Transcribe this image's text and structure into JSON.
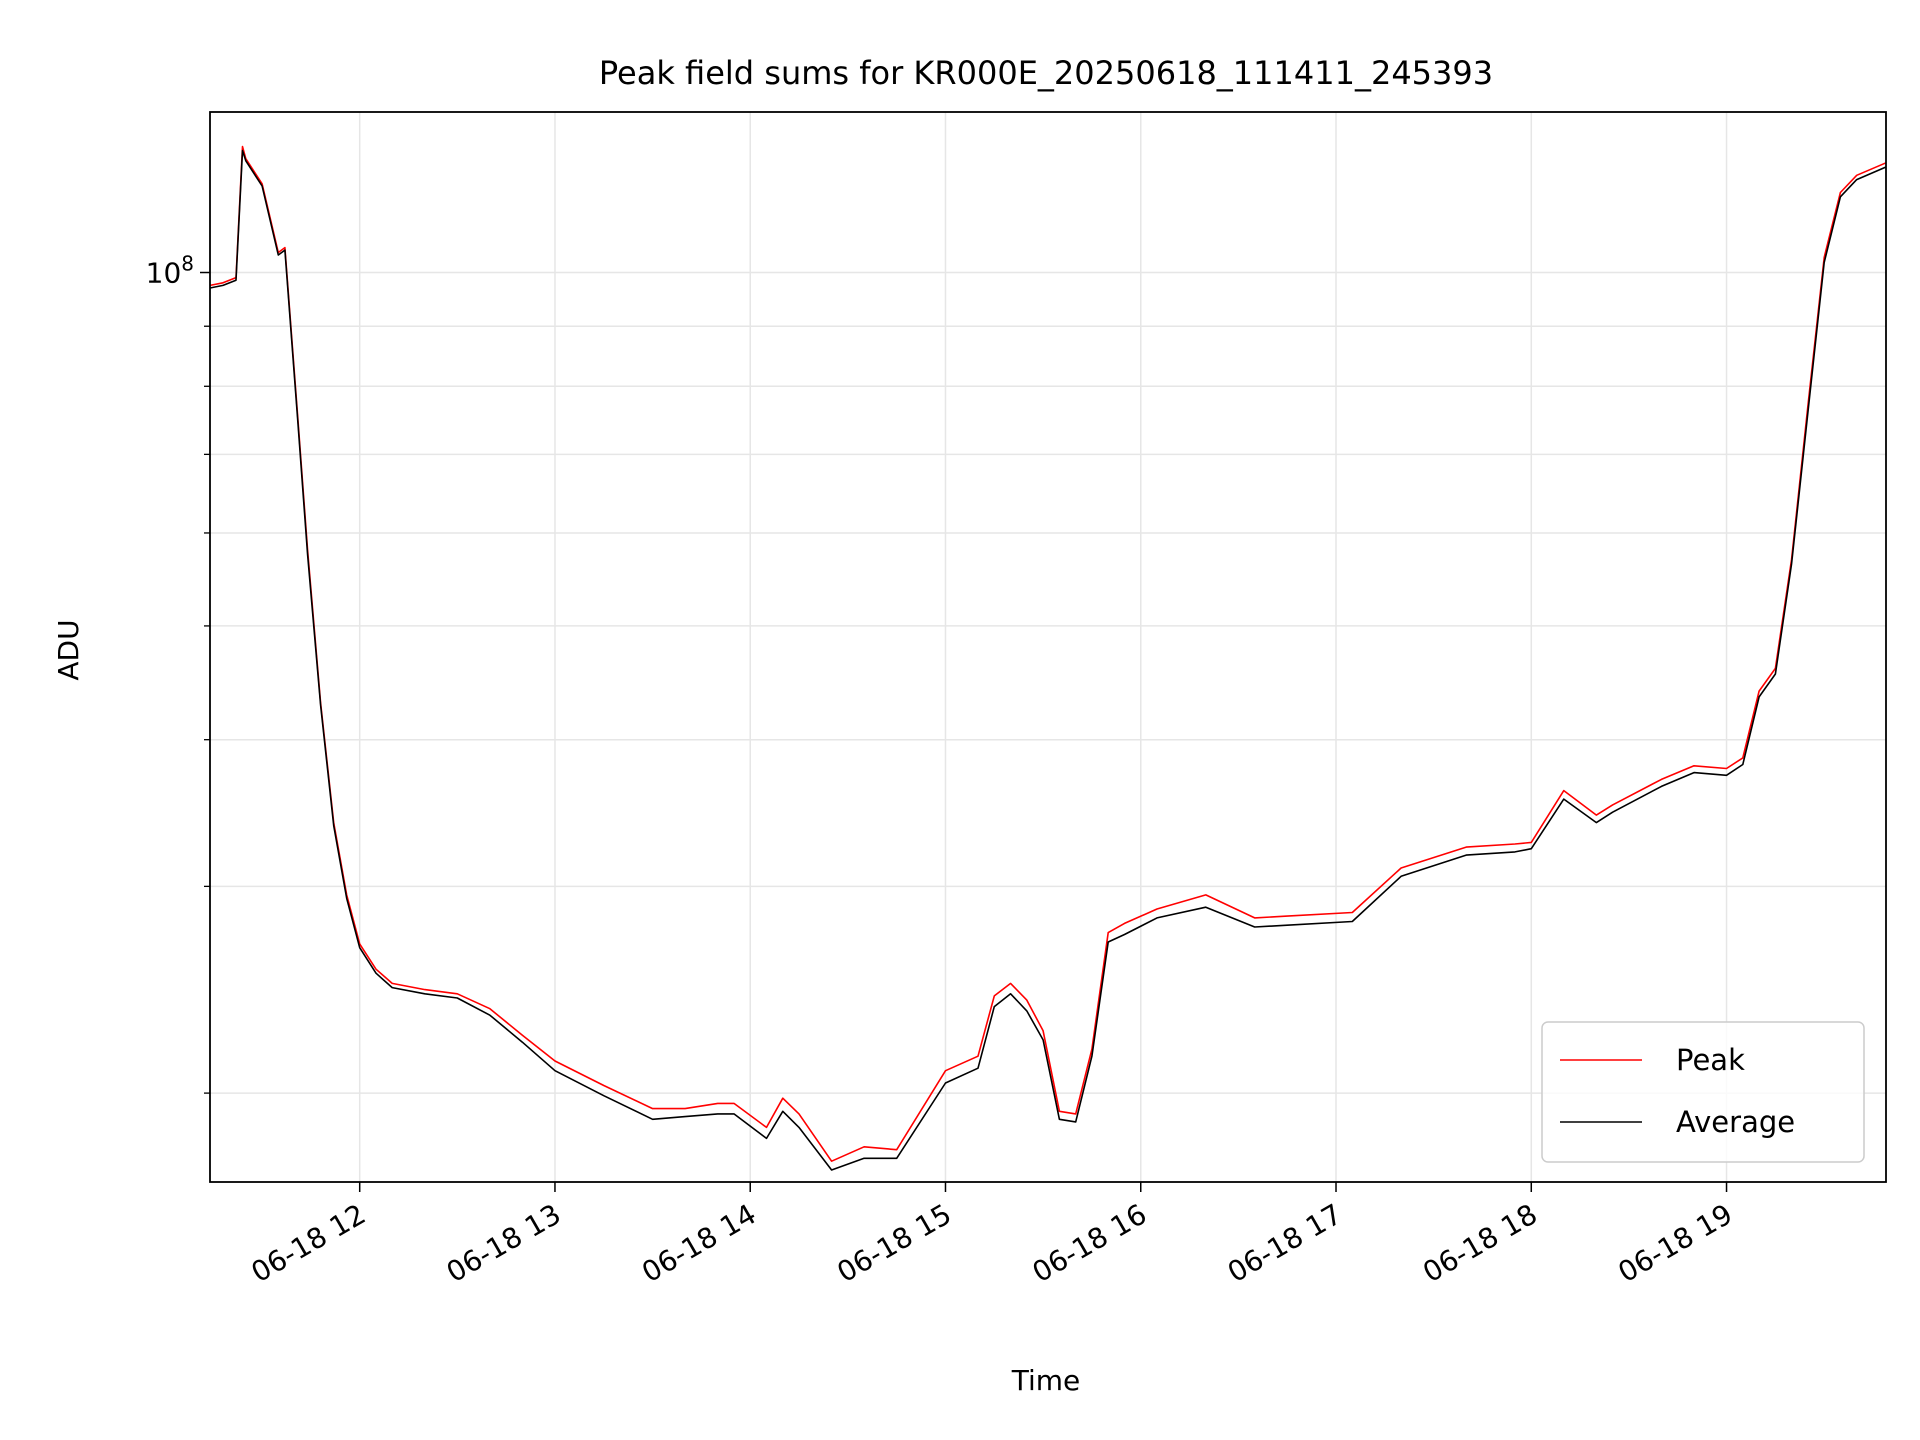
{
  "chart_data": {
    "type": "line",
    "title": "Peak field sums for KR000E_20250618_111411_245393",
    "xlabel": "Time",
    "ylabel": "ADU",
    "y_scale": "log",
    "ylim": [
      16800000,
      137000000
    ],
    "xlim": [
      "2025-06-18 11:14",
      "2025-06-18 19:49"
    ],
    "x_ticks": [
      {
        "label": "06-18 12",
        "value": "2025-06-18 12:00"
      },
      {
        "label": "06-18 13",
        "value": "2025-06-18 13:00"
      },
      {
        "label": "06-18 14",
        "value": "2025-06-18 14:00"
      },
      {
        "label": "06-18 15",
        "value": "2025-06-18 15:00"
      },
      {
        "label": "06-18 16",
        "value": "2025-06-18 16:00"
      },
      {
        "label": "06-18 17",
        "value": "2025-06-18 17:00"
      },
      {
        "label": "06-18 18",
        "value": "2025-06-18 18:00"
      },
      {
        "label": "06-18 19",
        "value": "2025-06-18 19:00"
      }
    ],
    "y_ticks": [
      {
        "label": "10",
        "exponent": "8",
        "value": 100000000
      }
    ],
    "grid": true,
    "legend": "lower-right",
    "series": [
      {
        "name": "Peak",
        "color": "#ff0000",
        "x": [
          "2025-06-18 11:14",
          "2025-06-18 11:18",
          "2025-06-18 11:22",
          "2025-06-18 11:24",
          "2025-06-18 11:25",
          "2025-06-18 11:30",
          "2025-06-18 11:35",
          "2025-06-18 11:37",
          "2025-06-18 11:41",
          "2025-06-18 11:44",
          "2025-06-18 11:48",
          "2025-06-18 11:52",
          "2025-06-18 11:56",
          "2025-06-18 12:00",
          "2025-06-18 12:05",
          "2025-06-18 12:10",
          "2025-06-18 12:20",
          "2025-06-18 12:30",
          "2025-06-18 12:40",
          "2025-06-18 12:50",
          "2025-06-18 13:00",
          "2025-06-18 13:15",
          "2025-06-18 13:30",
          "2025-06-18 13:40",
          "2025-06-18 13:50",
          "2025-06-18 13:55",
          "2025-06-18 14:05",
          "2025-06-18 14:10",
          "2025-06-18 14:15",
          "2025-06-18 14:25",
          "2025-06-18 14:35",
          "2025-06-18 14:45",
          "2025-06-18 15:00",
          "2025-06-18 15:10",
          "2025-06-18 15:15",
          "2025-06-18 15:20",
          "2025-06-18 15:25",
          "2025-06-18 15:30",
          "2025-06-18 15:35",
          "2025-06-18 15:40",
          "2025-06-18 15:45",
          "2025-06-18 15:50",
          "2025-06-18 15:55",
          "2025-06-18 16:05",
          "2025-06-18 16:20",
          "2025-06-18 16:35",
          "2025-06-18 16:45",
          "2025-06-18 17:05",
          "2025-06-18 17:20",
          "2025-06-18 17:40",
          "2025-06-18 17:55",
          "2025-06-18 18:00",
          "2025-06-18 18:10",
          "2025-06-18 18:20",
          "2025-06-18 18:25",
          "2025-06-18 18:40",
          "2025-06-18 18:50",
          "2025-06-18 19:00",
          "2025-06-18 19:05",
          "2025-06-18 19:10",
          "2025-06-18 19:15",
          "2025-06-18 19:20",
          "2025-06-18 19:25",
          "2025-06-18 19:30",
          "2025-06-18 19:35",
          "2025-06-18 19:40",
          "2025-06-18 19:49"
        ],
        "y": [
          97500000,
          98000000,
          99000000,
          128000000,
          125000000,
          119000000,
          104000000,
          105000000,
          75000000,
          58000000,
          43000000,
          34000000,
          29500000,
          26800000,
          25500000,
          24800000,
          24500000,
          24300000,
          23600000,
          22400000,
          21300000,
          20300000,
          19400000,
          19400000,
          19600000,
          19600000,
          18700000,
          19800000,
          19200000,
          17500000,
          18000000,
          17900000,
          20900000,
          21500000,
          24200000,
          24800000,
          24000000,
          22600000,
          19300000,
          19200000,
          21800000,
          27400000,
          27900000,
          28700000,
          29500000,
          28200000,
          28300000,
          28500000,
          31100000,
          32400000,
          32600000,
          32700000,
          36200000,
          34500000,
          35200000,
          37000000,
          38000000,
          37800000,
          38600000,
          44000000,
          46000000,
          57000000,
          77000000,
          103000000,
          117000000,
          121000000,
          124000000
        ]
      },
      {
        "name": "Average",
        "color": "#000000",
        "x": [
          "2025-06-18 11:14",
          "2025-06-18 11:18",
          "2025-06-18 11:22",
          "2025-06-18 11:24",
          "2025-06-18 11:25",
          "2025-06-18 11:30",
          "2025-06-18 11:35",
          "2025-06-18 11:37",
          "2025-06-18 11:41",
          "2025-06-18 11:44",
          "2025-06-18 11:48",
          "2025-06-18 11:52",
          "2025-06-18 11:56",
          "2025-06-18 12:00",
          "2025-06-18 12:05",
          "2025-06-18 12:10",
          "2025-06-18 12:20",
          "2025-06-18 12:30",
          "2025-06-18 12:40",
          "2025-06-18 12:50",
          "2025-06-18 13:00",
          "2025-06-18 13:15",
          "2025-06-18 13:30",
          "2025-06-18 13:40",
          "2025-06-18 13:50",
          "2025-06-18 13:55",
          "2025-06-18 14:05",
          "2025-06-18 14:10",
          "2025-06-18 14:15",
          "2025-06-18 14:25",
          "2025-06-18 14:35",
          "2025-06-18 14:45",
          "2025-06-18 15:00",
          "2025-06-18 15:10",
          "2025-06-18 15:15",
          "2025-06-18 15:20",
          "2025-06-18 15:25",
          "2025-06-18 15:30",
          "2025-06-18 15:35",
          "2025-06-18 15:40",
          "2025-06-18 15:45",
          "2025-06-18 15:50",
          "2025-06-18 15:55",
          "2025-06-18 16:05",
          "2025-06-18 16:20",
          "2025-06-18 16:35",
          "2025-06-18 16:45",
          "2025-06-18 17:05",
          "2025-06-18 17:20",
          "2025-06-18 17:40",
          "2025-06-18 17:55",
          "2025-06-18 18:00",
          "2025-06-18 18:10",
          "2025-06-18 18:20",
          "2025-06-18 18:25",
          "2025-06-18 18:40",
          "2025-06-18 18:50",
          "2025-06-18 19:00",
          "2025-06-18 19:05",
          "2025-06-18 19:10",
          "2025-06-18 19:15",
          "2025-06-18 19:20",
          "2025-06-18 19:25",
          "2025-06-18 19:30",
          "2025-06-18 19:35",
          "2025-06-18 19:40",
          "2025-06-18 19:49"
        ],
        "y": [
          97000000,
          97500000,
          98500000,
          127000000,
          124500000,
          118500000,
          103500000,
          104500000,
          74500000,
          57500000,
          42800000,
          33800000,
          29300000,
          26600000,
          25300000,
          24600000,
          24300000,
          24100000,
          23300000,
          22100000,
          20900000,
          19900000,
          19000000,
          19100000,
          19200000,
          19200000,
          18300000,
          19300000,
          18700000,
          17200000,
          17600000,
          17600000,
          20400000,
          21000000,
          23700000,
          24300000,
          23500000,
          22200000,
          19000000,
          18900000,
          21500000,
          26900000,
          27300000,
          28200000,
          28800000,
          27700000,
          27800000,
          28000000,
          30600000,
          31900000,
          32100000,
          32300000,
          35600000,
          34000000,
          34700000,
          36500000,
          37500000,
          37300000,
          38100000,
          43500000,
          45500000,
          56500000,
          76000000,
          102000000,
          116000000,
          120000000,
          123000000
        ]
      }
    ]
  }
}
